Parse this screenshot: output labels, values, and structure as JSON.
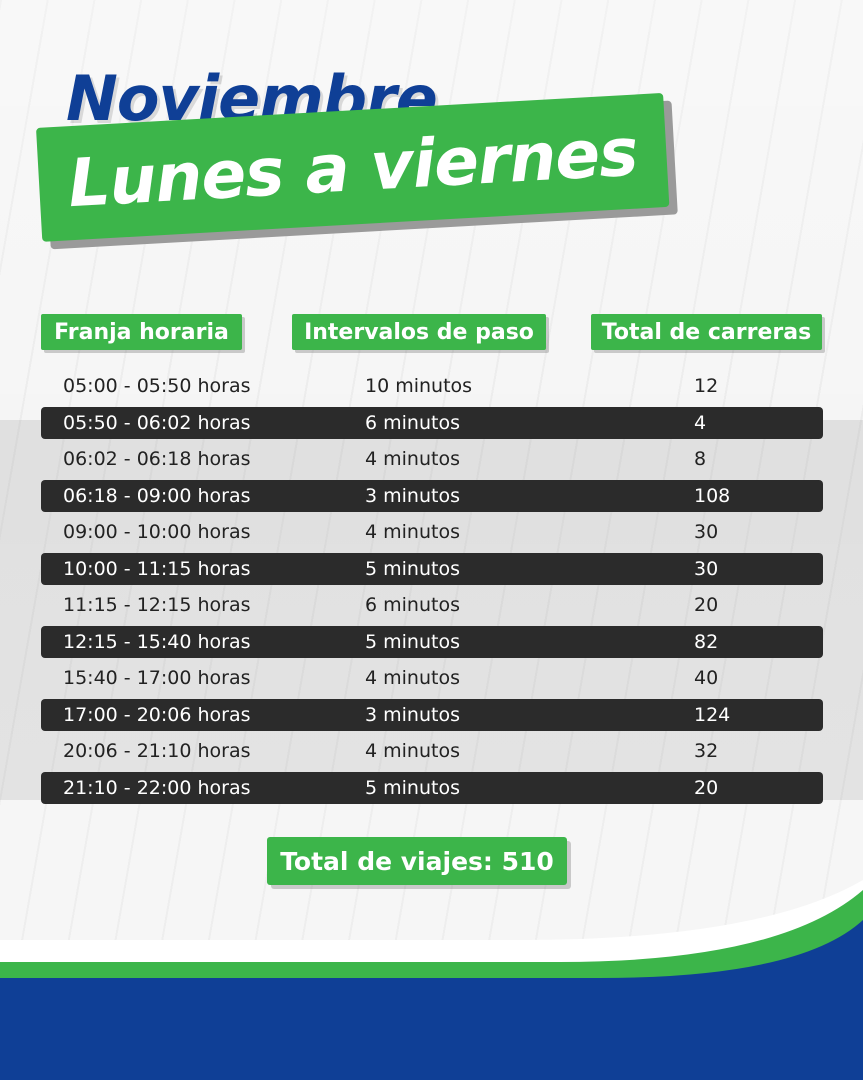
{
  "header": {
    "title": "Noviembre",
    "subtitle": "Lunes a viernes"
  },
  "table": {
    "columns": [
      "Franja  horaria",
      "Intervalos de paso",
      "Total de carreras"
    ],
    "rows": [
      {
        "franja": "05:00 - 05:50 horas",
        "intervalo": "10 minutos",
        "carreras": "12"
      },
      {
        "franja": "05:50 - 06:02 horas",
        "intervalo": "6 minutos",
        "carreras": "4"
      },
      {
        "franja": "06:02 - 06:18 horas",
        "intervalo": "4 minutos",
        "carreras": "8"
      },
      {
        "franja": "06:18 - 09:00 horas",
        "intervalo": "3 minutos",
        "carreras": "108"
      },
      {
        "franja": "09:00 - 10:00 horas",
        "intervalo": "4 minutos",
        "carreras": "30"
      },
      {
        "franja": "10:00 -  11:15  horas",
        "intervalo": "5 minutos",
        "carreras": "30"
      },
      {
        "franja": "11:15 - 12:15  horas",
        "intervalo": "6 minutos",
        "carreras": "20"
      },
      {
        "franja": "12:15 - 15:40 horas",
        "intervalo": "5 minutos",
        "carreras": "82"
      },
      {
        "franja": "15:40 - 17:00 horas",
        "intervalo": "4 minutos",
        "carreras": "40"
      },
      {
        "franja": "17:00 - 20:06 horas",
        "intervalo": "3 minutos",
        "carreras": "124"
      },
      {
        "franja": "20:06 - 21:10 horas",
        "intervalo": "4 minutos",
        "carreras": "32"
      },
      {
        "franja": "21:10 - 22:00 horas",
        "intervalo": "5 minutos",
        "carreras": "20"
      }
    ]
  },
  "summary": {
    "total_label": "Total de viajes: 510"
  },
  "colors": {
    "green": "#3cb54a",
    "blue": "#0f3f96",
    "dark_row": "#2b2b2b"
  }
}
